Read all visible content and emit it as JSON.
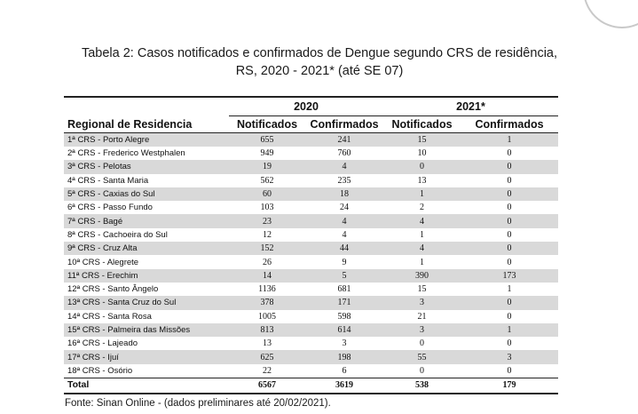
{
  "title_line1": "Tabela 2: Casos notificados e confirmados de Dengue segundo CRS de residência,",
  "title_line2": "RS, 2020 - 2021* (até SE 07)",
  "table": {
    "year_2020": "2020",
    "year_2021": "2021*",
    "headers": {
      "region": "Regional de Residencia",
      "notified_2020": "Notificados",
      "confirmed_2020": "Confirmados",
      "notified_2021": "Notificados",
      "confirmed_2021": "Confirmados"
    },
    "rows": [
      {
        "region": "1ª CRS - Porto Alegre",
        "n2020": "655",
        "c2020": "241",
        "n2021": "15",
        "c2021": "1"
      },
      {
        "region": "2ª CRS - Frederico Westphalen",
        "n2020": "949",
        "c2020": "760",
        "n2021": "10",
        "c2021": "0"
      },
      {
        "region": "3ª CRS - Pelotas",
        "n2020": "19",
        "c2020": "4",
        "n2021": "0",
        "c2021": "0"
      },
      {
        "region": "4ª CRS - Santa Maria",
        "n2020": "562",
        "c2020": "235",
        "n2021": "13",
        "c2021": "0"
      },
      {
        "region": "5ª CRS - Caxias do Sul",
        "n2020": "60",
        "c2020": "18",
        "n2021": "1",
        "c2021": "0"
      },
      {
        "region": "6ª CRS - Passo Fundo",
        "n2020": "103",
        "c2020": "24",
        "n2021": "2",
        "c2021": "0"
      },
      {
        "region": "7ª CRS - Bagé",
        "n2020": "23",
        "c2020": "4",
        "n2021": "4",
        "c2021": "0"
      },
      {
        "region": "8ª CRS - Cachoeira do Sul",
        "n2020": "12",
        "c2020": "4",
        "n2021": "1",
        "c2021": "0"
      },
      {
        "region": "9ª CRS - Cruz Alta",
        "n2020": "152",
        "c2020": "44",
        "n2021": "4",
        "c2021": "0"
      },
      {
        "region": "10ª CRS - Alegrete",
        "n2020": "26",
        "c2020": "9",
        "n2021": "1",
        "c2021": "0"
      },
      {
        "region": "11ª CRS - Erechim",
        "n2020": "14",
        "c2020": "5",
        "n2021": "390",
        "c2021": "173"
      },
      {
        "region": "12ª CRS - Santo Ângelo",
        "n2020": "1136",
        "c2020": "681",
        "n2021": "15",
        "c2021": "1"
      },
      {
        "region": "13ª CRS - Santa Cruz do Sul",
        "n2020": "378",
        "c2020": "171",
        "n2021": "3",
        "c2021": "0"
      },
      {
        "region": "14ª CRS - Santa Rosa",
        "n2020": "1005",
        "c2020": "598",
        "n2021": "21",
        "c2021": "0"
      },
      {
        "region": "15ª CRS - Palmeira das Missões",
        "n2020": "813",
        "c2020": "614",
        "n2021": "3",
        "c2021": "1"
      },
      {
        "region": "16ª CRS - Lajeado",
        "n2020": "13",
        "c2020": "3",
        "n2021": "0",
        "c2021": "0"
      },
      {
        "region": "17ª CRS - Ijuí",
        "n2020": "625",
        "c2020": "198",
        "n2021": "55",
        "c2021": "3"
      },
      {
        "region": "18ª CRS - Osório",
        "n2020": "22",
        "c2020": "6",
        "n2021": "0",
        "c2021": "0"
      }
    ],
    "total": {
      "region": "Total",
      "n2020": "6567",
      "c2020": "3619",
      "n2021": "538",
      "c2021": "179"
    }
  },
  "source": "Fonte: Sinan Online - (dados preliminares até 20/02/2021)."
}
